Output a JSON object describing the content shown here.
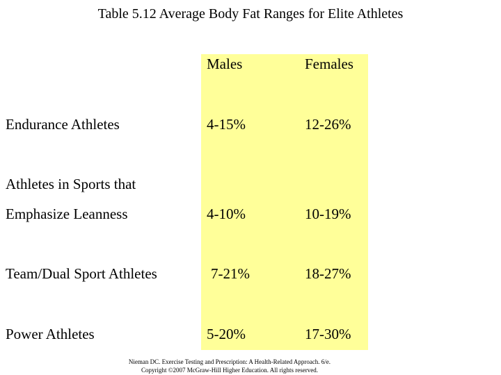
{
  "title": "Table 5.12 Average Body Fat Ranges for Elite Athletes",
  "table": {
    "headers": {
      "males": "Males",
      "females": "Females"
    },
    "rows": [
      {
        "label": "Endurance Athletes",
        "males": "4-15%",
        "females": "12-26%"
      },
      {
        "label_line1": "Athletes in Sports that",
        "label": "Emphasize Leanness",
        "males": "4-10%",
        "females": "10-19%"
      },
      {
        "label": "Team/Dual Sport Athletes",
        "males": "7-21%",
        "females": "18-27%"
      },
      {
        "label": "Power Athletes",
        "males": "5-20%",
        "females": "17-30%"
      }
    ]
  },
  "footer": {
    "line1": "Nieman DC. Exercise Testing and Prescription: A Health-Related Approach. 6/e.",
    "line2": "Copyright ©2007 McGraw-Hill Higher Education. All rights reserved."
  },
  "colors": {
    "highlight": "#ffff99",
    "text": "#000000"
  }
}
